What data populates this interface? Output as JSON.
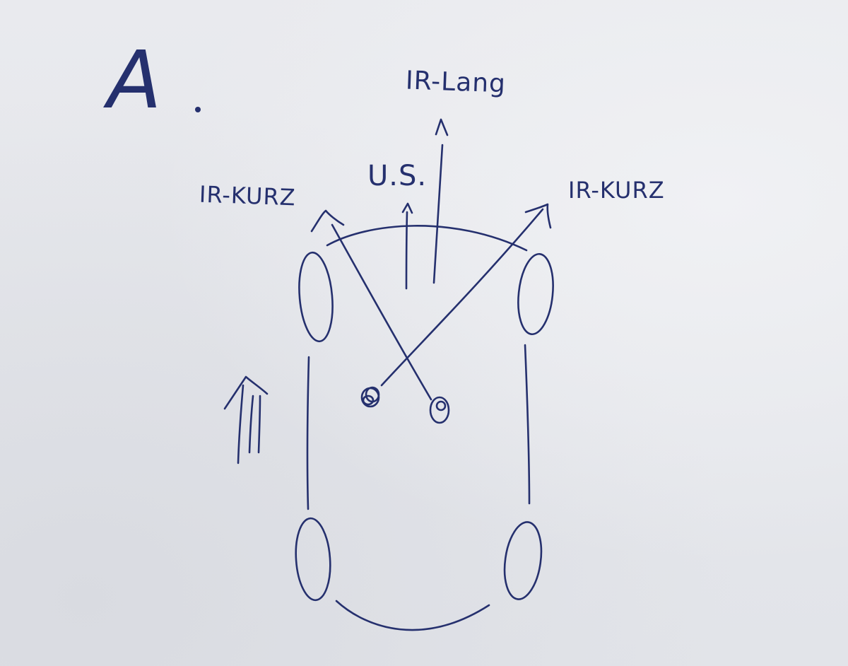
{
  "ink_color": "#25306e",
  "paper_color": "#e6e7ec",
  "heading": "A",
  "sensors": {
    "ir_long_label": "IR-Lang",
    "ultrasonic_label": "U.S.",
    "ir_short_left_label": "IR-KURZ",
    "ir_short_right_label": "IR-KURZ"
  }
}
